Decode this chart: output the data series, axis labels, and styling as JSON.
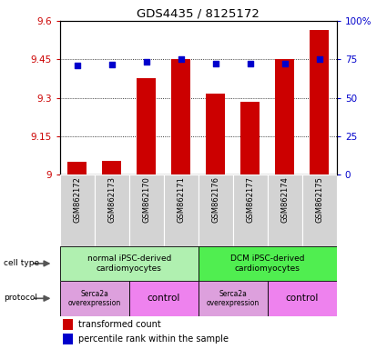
{
  "title": "GDS4435 / 8125172",
  "samples": [
    "GSM862172",
    "GSM862173",
    "GSM862170",
    "GSM862171",
    "GSM862176",
    "GSM862177",
    "GSM862174",
    "GSM862175"
  ],
  "bar_values": [
    9.05,
    9.055,
    9.375,
    9.45,
    9.315,
    9.285,
    9.45,
    9.565
  ],
  "dot_values": [
    71.0,
    71.5,
    73.5,
    75.0,
    72.0,
    72.0,
    72.5,
    75.0
  ],
  "bar_color": "#cc0000",
  "dot_color": "#0000cc",
  "ylim_left": [
    9.0,
    9.6
  ],
  "ylim_right": [
    0,
    100
  ],
  "yticks_left": [
    9.0,
    9.15,
    9.3,
    9.45,
    9.6
  ],
  "yticks_right": [
    0,
    25,
    50,
    75,
    100
  ],
  "ytick_labels_left": [
    "9",
    "9.15",
    "9.3",
    "9.45",
    "9.6"
  ],
  "ytick_labels_right": [
    "0",
    "25",
    "50",
    "75",
    "100%"
  ],
  "grid_values": [
    9.15,
    9.3,
    9.45
  ],
  "cell_type_labels": [
    "normal iPSC-derived\ncardiomyocytes",
    "DCM iPSC-derived\ncardiomyocytes"
  ],
  "cell_type_color_left": "#b0f0b0",
  "cell_type_color_right": "#50ee50",
  "protocol_serca_color": "#dda0dd",
  "protocol_control_color": "#ee82ee",
  "protocol_labels": [
    "Serca2a\noverexpression",
    "control",
    "Serca2a\noverexpression",
    "control"
  ],
  "legend_bar_label": "transformed count",
  "legend_dot_label": "percentile rank within the sample",
  "axis_label_color_left": "#cc0000",
  "axis_label_color_right": "#0000cc",
  "xlab_bg": "#d3d3d3",
  "plot_bg": "#ffffff"
}
